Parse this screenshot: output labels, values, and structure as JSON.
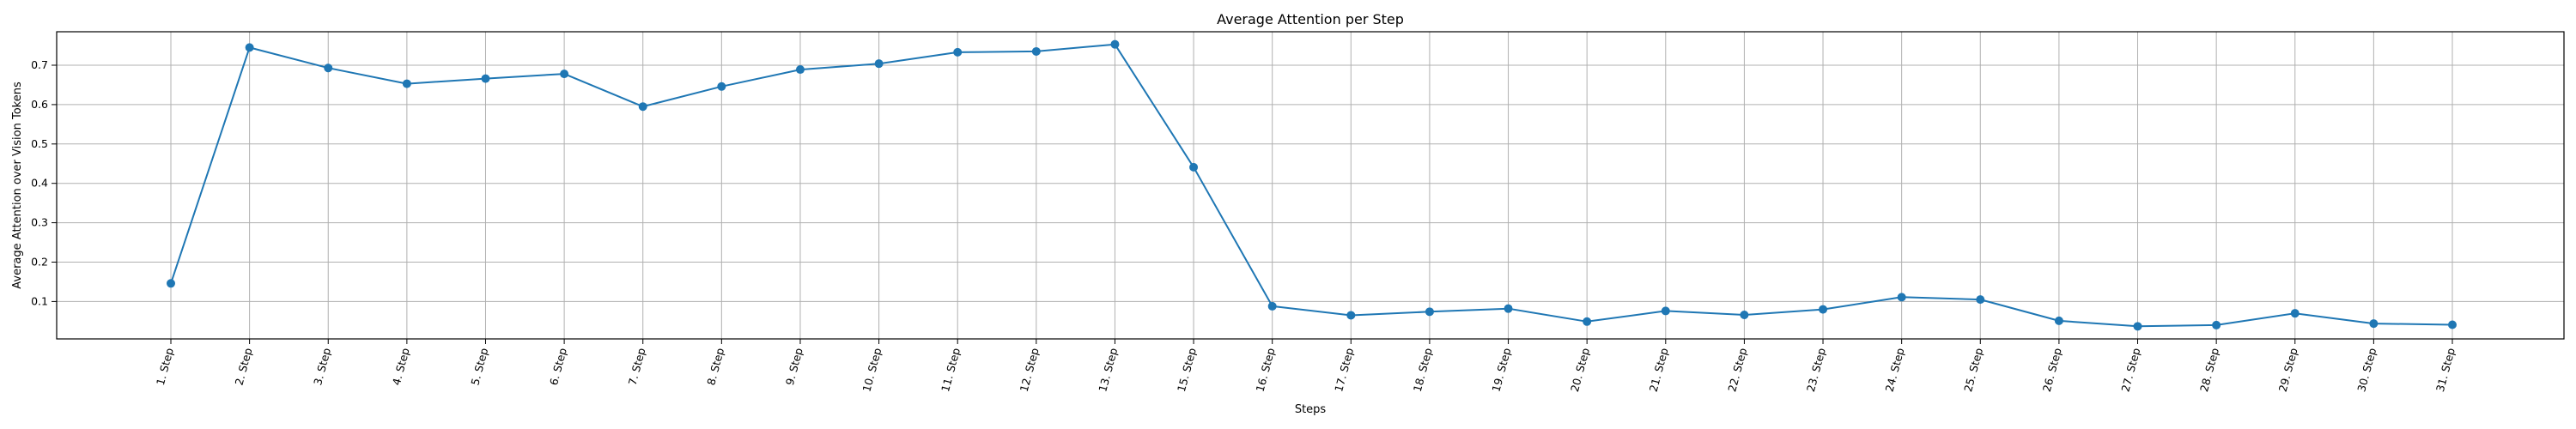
{
  "chart_data": {
    "type": "line",
    "title": "Average Attention per Step",
    "xlabel": "Steps",
    "ylabel": "Average Attention over Vision Tokens",
    "categories": [
      "1. Step",
      "2. Step",
      "3. Step",
      "4. Step",
      "5. Step",
      "6. Step",
      "7. Step",
      "8. Step",
      "9. Step",
      "10. Step",
      "11. Step",
      "12. Step",
      "13. Step",
      "15. Step",
      "16. Step",
      "17. Step",
      "18. Step",
      "19. Step",
      "20. Step",
      "21. Step",
      "22. Step",
      "23. Step",
      "24. Step",
      "25. Step",
      "26. Step",
      "27. Step",
      "28. Step",
      "29. Step",
      "30. Step",
      "31. Step"
    ],
    "values": [
      0.146,
      0.745,
      0.693,
      0.653,
      0.666,
      0.678,
      0.595,
      0.646,
      0.689,
      0.704,
      0.733,
      0.735,
      0.753,
      0.441,
      0.088,
      0.065,
      0.074,
      0.082,
      0.049,
      0.076,
      0.066,
      0.08,
      0.111,
      0.105,
      0.051,
      0.037,
      0.04,
      0.07,
      0.044,
      0.041
    ],
    "yticks": [
      0.1,
      0.2,
      0.3,
      0.4,
      0.5,
      0.6,
      0.7
    ],
    "ylim": [
      0.005,
      0.785
    ],
    "grid": true,
    "line_color": "#1f77b4",
    "marker": "circle"
  }
}
